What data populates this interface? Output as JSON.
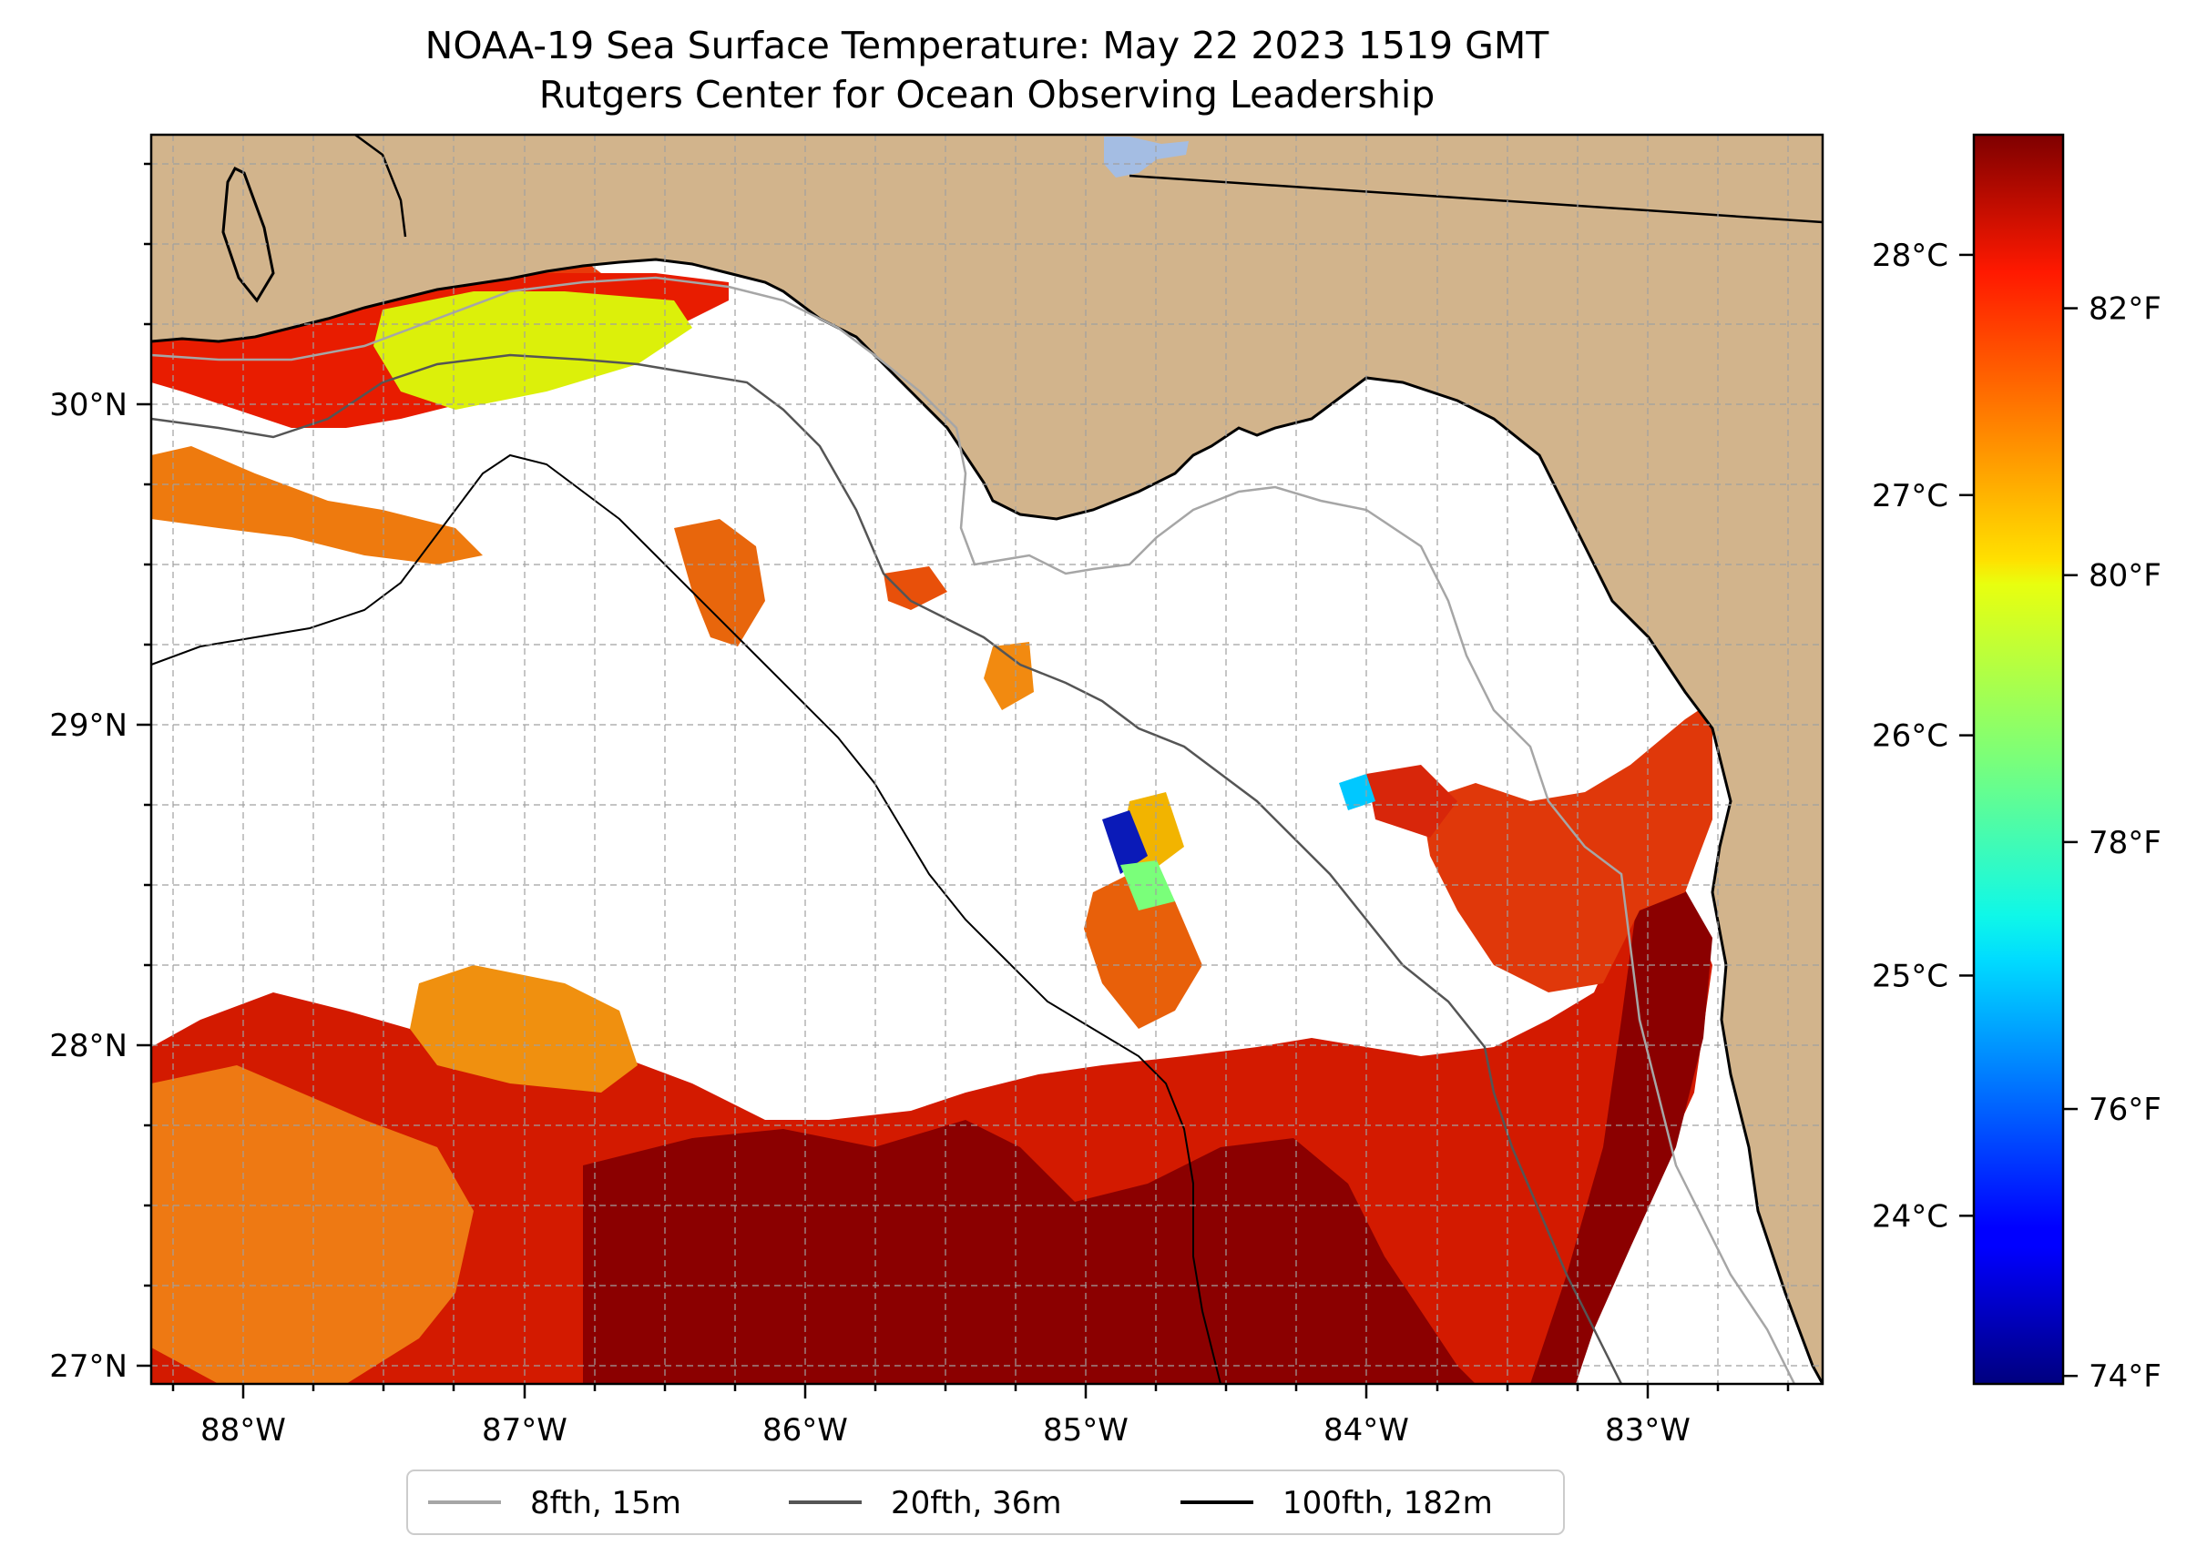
{
  "title": "NOAA-19 Sea Surface Temperature: May 22 2023 1519 GMT",
  "subtitle": "Rutgers Center for Ocean Observing Leadership",
  "map": {
    "lon_range": [
      -88.33,
      -82.4
    ],
    "lat_range": [
      26.94,
      30.86
    ],
    "lon_labels": [
      "88°W",
      "87°W",
      "86°W",
      "85°W",
      "84°W",
      "83°W"
    ],
    "lat_labels": [
      "27°N",
      "28°N",
      "29°N",
      "30°N"
    ],
    "land_color": "#d2b48c",
    "nodata_color": "#ffffff",
    "lake_color": "#a4bde3"
  },
  "colorbar": {
    "colormap": "jet",
    "range_c": [
      23.3,
      28.5
    ],
    "celsius_labels": [
      "28°C",
      "27°C",
      "26°C",
      "25°C",
      "24°C"
    ],
    "celsius_values": [
      28,
      27,
      26,
      25,
      24
    ],
    "fahrenheit_labels": [
      "82°F",
      "80°F",
      "78°F",
      "76°F",
      "74°F"
    ],
    "fahrenheit_values": [
      82,
      80,
      78,
      76,
      74
    ]
  },
  "legend": {
    "items": [
      {
        "label": "8fth, 15m",
        "color": "#a6a6a6"
      },
      {
        "label": "20fth, 36m",
        "color": "#555555"
      },
      {
        "label": "100fth, 182m",
        "color": "#000000"
      }
    ]
  }
}
